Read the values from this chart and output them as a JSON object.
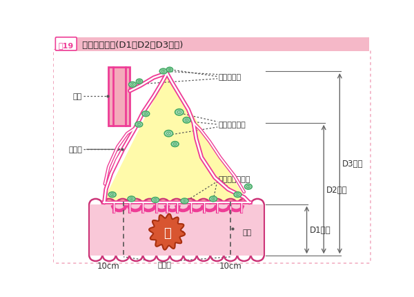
{
  "title_fig": "図19",
  "title_main": " リンパ節郭清(D1，D2，D3郭清)",
  "bg_color": "#FFFFFF",
  "frame_color": "#F0A0B8",
  "title_bar_color": "#F5B8C8",
  "main_pink": "#EE3D96",
  "light_pink": "#F9C8D8",
  "yellow_fill": "#FFFAAA",
  "green_node_fill": "#AADDBB",
  "green_node_edge": "#44AA66",
  "red_tumor": "#D85530",
  "intestine_pink": "#F9C8D8",
  "dim_line_color": "#666666",
  "ann_line_color": "#555555",
  "label_color": "#333333",
  "labels": {
    "kekkan": "血管",
    "shu": "主リンパ節",
    "chukan": "中間リンパ節",
    "chyokanmaku": "腸間膜",
    "chyokanpo": "腸管傍リンパ節",
    "chyokan": "腸管",
    "kessen": "切除線",
    "d1": "D1郭清",
    "d2": "D2郭清",
    "d3": "D3郭清",
    "10cm": "10cm",
    "cancer": "癌"
  },
  "font_family": "IPAexGothic"
}
